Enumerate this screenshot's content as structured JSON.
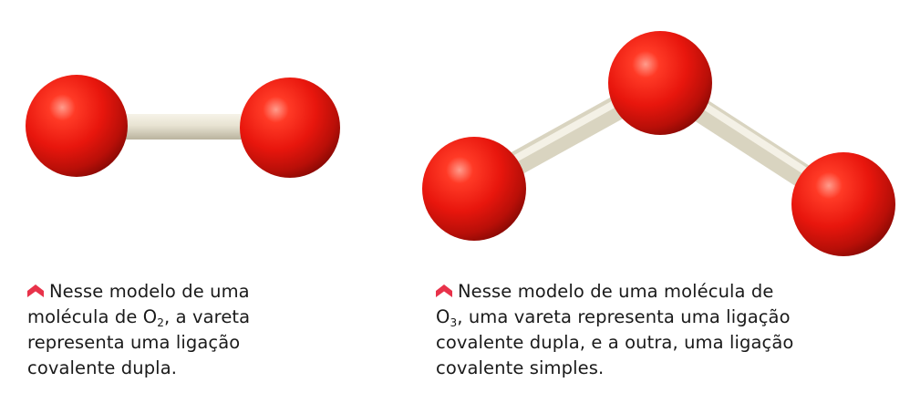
{
  "colors": {
    "atom": "#e8160d",
    "atom_highlight": "#ff8a78",
    "atom_shadow": "#8f0a05",
    "rod": "#e6e1cf",
    "marker": "#e8324a",
    "text": "#1a1a1a"
  },
  "o2_model": {
    "atoms": [
      "oxygen",
      "oxygen"
    ],
    "bonds": [
      "double"
    ]
  },
  "o3_model": {
    "atoms": [
      "oxygen",
      "oxygen",
      "oxygen"
    ],
    "bonds": [
      "double",
      "single"
    ]
  },
  "captions": {
    "o2": {
      "marker_icon": "chevron-up-icon",
      "line1": "Nesse modelo de uma",
      "line2_pre": "molécula de O",
      "line2_sub": "2",
      "line2_post": ", a vareta",
      "line3": "representa uma ligação",
      "line4": "covalente dupla."
    },
    "o3": {
      "marker_icon": "chevron-up-icon",
      "line1": "Nesse modelo de uma molécula de",
      "line2_pre": "O",
      "line2_sub": "3",
      "line2_post": ", uma vareta representa uma ligação",
      "line3": "covalente dupla, e a outra, uma ligação",
      "line4": "covalente simples."
    }
  }
}
